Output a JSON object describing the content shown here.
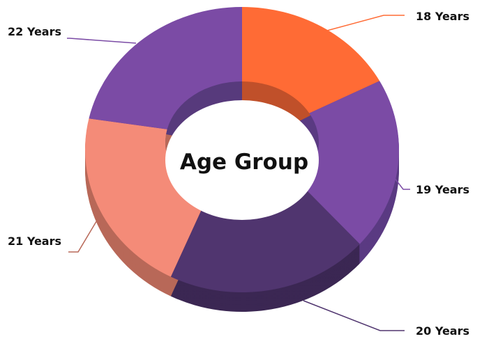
{
  "chart_data": {
    "type": "pie",
    "variant": "3d-donut",
    "title": "Age Group",
    "categories": [
      "18 Years",
      "19 Years",
      "20 Years",
      "21 Years",
      "22 Years"
    ],
    "values": [
      17,
      19.5,
      21,
      21,
      21.5
    ],
    "colors": [
      "#FF6B35",
      "#7B4BA5",
      "#50356F",
      "#F48B78",
      "#7B4BA5"
    ],
    "side_colors": [
      "#C0502A",
      "#5A3A82",
      "#3B2753",
      "#B86858",
      "#573A7C"
    ],
    "legend": "none",
    "labels": "outside with leader lines"
  }
}
